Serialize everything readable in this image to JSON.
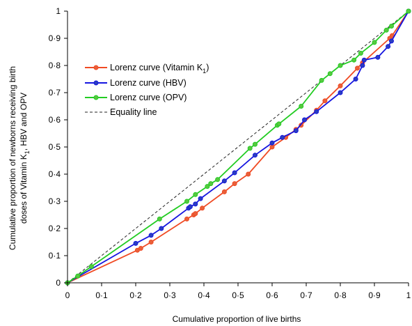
{
  "chart_data": {
    "type": "line",
    "title": "",
    "xlabel": "Cumulative proportion of live births",
    "ylabel_line1": "Cumulative proportion of newborns receiving birth",
    "ylabel_line2_prefix": "doses of Vitamin K",
    "ylabel_line2_sub": "1",
    "ylabel_line2_suffix": ", HBV and OPV",
    "xlim": [
      0,
      1
    ],
    "ylim": [
      0,
      1
    ],
    "x_ticks": [
      0,
      0.1,
      0.2,
      0.3,
      0.4,
      0.5,
      0.6,
      0.7,
      0.8,
      0.9,
      1
    ],
    "y_ticks": [
      0,
      0.1,
      0.2,
      0.3,
      0.4,
      0.5,
      0.6,
      0.7,
      0.8,
      0.9,
      1
    ],
    "x_tick_labels": [
      "0",
      "0·1",
      "0·2",
      "0·3",
      "0·4",
      "0·5",
      "0·6",
      "0·7",
      "0·8",
      "0·9",
      "1"
    ],
    "y_tick_labels": [
      "0",
      "0·1",
      "0·2",
      "0·3",
      "0·4",
      "0·5",
      "0·6",
      "0·7",
      "0·8",
      "0·9",
      "1"
    ],
    "grid": false,
    "legend_position": "upper-left",
    "series": [
      {
        "key": "vitk",
        "name_prefix": "Lorenz curve (Vitamin K",
        "name_sub": "1",
        "name_suffix": ")",
        "color": "#f04a23",
        "fill": "#e8603a",
        "marker": "circle",
        "x": [
          0,
          0.205,
          0.215,
          0.245,
          0.35,
          0.37,
          0.375,
          0.395,
          0.46,
          0.49,
          0.53,
          0.6,
          0.64,
          0.67,
          0.685,
          0.73,
          0.755,
          0.8,
          0.85,
          0.865,
          0.945,
          0.952,
          1
        ],
        "y": [
          0,
          0.12,
          0.127,
          0.15,
          0.235,
          0.25,
          0.255,
          0.275,
          0.335,
          0.365,
          0.4,
          0.5,
          0.535,
          0.565,
          0.58,
          0.635,
          0.67,
          0.725,
          0.79,
          0.81,
          0.9,
          0.91,
          1
        ]
      },
      {
        "key": "hbv",
        "name": "Lorenz curve (HBV)",
        "color": "#1515e0",
        "fill": "#2a3fbf",
        "marker": "circle",
        "x": [
          0,
          0.2,
          0.245,
          0.275,
          0.355,
          0.36,
          0.375,
          0.39,
          0.46,
          0.49,
          0.55,
          0.6,
          0.63,
          0.67,
          0.695,
          0.73,
          0.8,
          0.845,
          0.865,
          0.87,
          0.91,
          0.94,
          0.95,
          1
        ],
        "y": [
          0,
          0.145,
          0.175,
          0.2,
          0.275,
          0.28,
          0.29,
          0.31,
          0.375,
          0.405,
          0.47,
          0.515,
          0.535,
          0.56,
          0.6,
          0.63,
          0.7,
          0.75,
          0.8,
          0.82,
          0.83,
          0.87,
          0.89,
          1
        ]
      },
      {
        "key": "opv",
        "name": "Lorenz curve (OPV)",
        "color": "#22cc22",
        "fill": "#58c840",
        "marker": "circle",
        "x": [
          0,
          0.03,
          0.07,
          0.27,
          0.35,
          0.375,
          0.41,
          0.42,
          0.44,
          0.535,
          0.55,
          0.615,
          0.62,
          0.685,
          0.745,
          0.77,
          0.8,
          0.84,
          0.86,
          0.9,
          0.935,
          0.95,
          1
        ],
        "y": [
          0,
          0.025,
          0.06,
          0.235,
          0.3,
          0.325,
          0.355,
          0.365,
          0.38,
          0.495,
          0.51,
          0.58,
          0.585,
          0.65,
          0.745,
          0.77,
          0.8,
          0.82,
          0.845,
          0.885,
          0.93,
          0.945,
          1
        ]
      },
      {
        "key": "equality",
        "name": "Equality line",
        "color": "#222222",
        "dashed": true,
        "marker": "none",
        "x": [
          0,
          1
        ],
        "y": [
          0,
          1
        ]
      }
    ]
  }
}
